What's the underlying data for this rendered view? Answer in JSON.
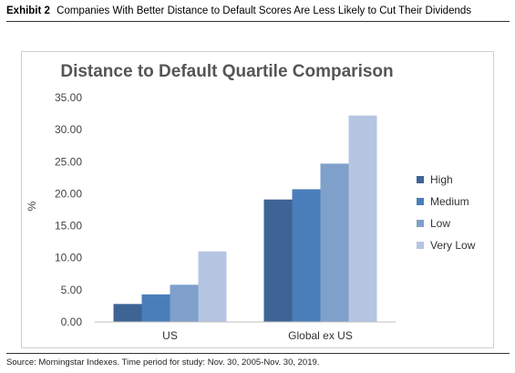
{
  "exhibit": {
    "label": "Exhibit 2",
    "title": "Companies With Better Distance to Default Scores Are Less Likely to Cut Their Dividends"
  },
  "source": "Source: Morningstar Indexes. Time period for study: Nov. 30, 2005-Nov. 30, 2019.",
  "chart_data": {
    "type": "bar",
    "title": "Distance to Default Quartile Comparison",
    "xlabel": "",
    "ylabel": "%",
    "ylim": [
      0,
      35
    ],
    "yticks": [
      "0.00",
      "5.00",
      "10.00",
      "15.00",
      "20.00",
      "25.00",
      "30.00",
      "35.00"
    ],
    "grid": false,
    "legend_position": "right",
    "categories": [
      "US",
      "Global ex US"
    ],
    "series": [
      {
        "name": "High",
        "color": "#3d6495",
        "values": [
          2.8,
          19.1
        ]
      },
      {
        "name": "Medium",
        "color": "#4a7ebb",
        "values": [
          4.3,
          20.7
        ]
      },
      {
        "name": "Low",
        "color": "#7fa0cb",
        "values": [
          5.8,
          24.7
        ]
      },
      {
        "name": "Very Low",
        "color": "#b5c5e2",
        "values": [
          11.0,
          32.2
        ]
      }
    ]
  }
}
